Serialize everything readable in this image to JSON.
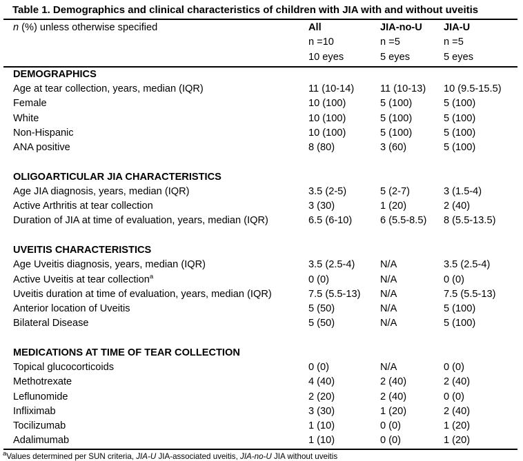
{
  "title": "Table 1. Demographics and clinical characteristics of children with JIA with and without uveitis",
  "colors": {
    "text": "#000000",
    "background": "#ffffff",
    "rule": "#000000"
  },
  "header": {
    "stub": {
      "italic": "n",
      "rest": " (%) unless otherwise specified"
    },
    "columns": [
      {
        "label": "All",
        "n": "n =10",
        "eyes": "10 eyes"
      },
      {
        "label": "JIA-no-U",
        "n": "n =5",
        "eyes": "5 eyes"
      },
      {
        "label": "JIA-U",
        "n": "n =5",
        "eyes": "5 eyes"
      }
    ]
  },
  "sections": [
    {
      "heading": "DEMOGRAPHICS",
      "rows": [
        {
          "label": "Age at tear collection, years, median (IQR)",
          "values": [
            "11 (10-14)",
            "11 (10-13)",
            "10 (9.5-15.5)"
          ]
        },
        {
          "label": "Female",
          "values": [
            "10 (100)",
            "5 (100)",
            "5 (100)"
          ]
        },
        {
          "label": "White",
          "values": [
            "10 (100)",
            "5 (100)",
            "5 (100)"
          ]
        },
        {
          "label": "Non-Hispanic",
          "values": [
            "10 (100)",
            "5 (100)",
            "5 (100)"
          ]
        },
        {
          "label": "ANA positive",
          "values": [
            "8 (80)",
            "3 (60)",
            "5 (100)"
          ]
        }
      ]
    },
    {
      "heading": "OLIGOARTICULAR JIA CHARACTERISTICS",
      "rows": [
        {
          "label": "Age JIA diagnosis, years, median (IQR)",
          "values": [
            "3.5 (2-5)",
            "5 (2-7)",
            "3 (1.5-4)"
          ]
        },
        {
          "label": "Active Arthritis at tear collection",
          "values": [
            "3 (30)",
            "1 (20)",
            "2 (40)"
          ]
        },
        {
          "label": "Duration of JIA at time of evaluation, years, median (IQR)",
          "values": [
            "6.5 (6-10)",
            "6 (5.5-8.5)",
            "8 (5.5-13.5)"
          ]
        }
      ]
    },
    {
      "heading": "UVEITIS CHARACTERISTICS",
      "rows": [
        {
          "label": "Age Uveitis diagnosis, years, median (IQR)",
          "values": [
            "3.5 (2.5-4)",
            "N/A",
            "3.5 (2.5-4)"
          ]
        },
        {
          "label": "Active Uveitis at tear collection",
          "sup": "a",
          "values": [
            "0 (0)",
            "N/A",
            "0 (0)"
          ]
        },
        {
          "label": "Uveitis duration at time of evaluation, years, median (IQR)",
          "values": [
            "7.5 (5.5-13)",
            "N/A",
            "7.5 (5.5-13)"
          ]
        },
        {
          "label": "Anterior location of Uveitis",
          "values": [
            "5 (50)",
            "N/A",
            "5 (100)"
          ]
        },
        {
          "label": "Bilateral Disease",
          "values": [
            "5 (50)",
            "N/A",
            "5 (100)"
          ]
        }
      ]
    },
    {
      "heading": "MEDICATIONS AT TIME OF TEAR COLLECTION",
      "rows": [
        {
          "label": "Topical glucocorticoids",
          "values": [
            "0 (0)",
            "N/A",
            "0 (0)"
          ]
        },
        {
          "label": "Methotrexate",
          "values": [
            "4 (40)",
            "2 (40)",
            "2 (40)"
          ]
        },
        {
          "label": "Leflunomide",
          "values": [
            "2 (20)",
            "2 (40)",
            "0 (0)"
          ]
        },
        {
          "label": "Infliximab",
          "values": [
            "3 (30)",
            "1 (20)",
            "2 (40)"
          ]
        },
        {
          "label": "Tocilizumab",
          "values": [
            "1 (10)",
            "0 (0)",
            "1 (20)"
          ]
        },
        {
          "label": "Adalimumab",
          "values": [
            "1 (10)",
            "0 (0)",
            "1 (20)"
          ]
        }
      ]
    }
  ],
  "footnote": {
    "parts": [
      {
        "text": "a",
        "style": "sup"
      },
      {
        "text": "Values determined per SUN criteria, ",
        "style": "normal"
      },
      {
        "text": "JIA-U",
        "style": "italic"
      },
      {
        "text": " JIA-associated uveitis, ",
        "style": "normal"
      },
      {
        "text": "JIA-no-U",
        "style": "italic"
      },
      {
        "text": " JIA without uveitis",
        "style": "normal"
      }
    ]
  }
}
